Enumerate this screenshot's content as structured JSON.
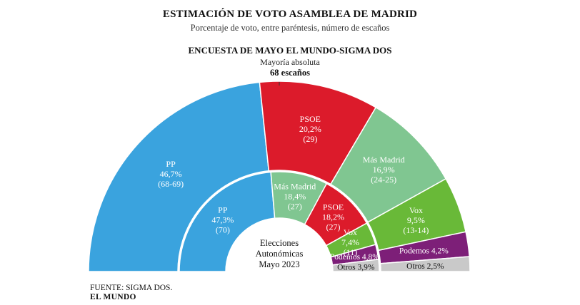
{
  "header": {
    "title": "ESTIMACIÓN DE VOTO ASAMBLEA DE MADRID",
    "subtitle": "Porcentaje de voto, entre paréntesis, número de escaños",
    "survey": "ENCUESTA DE MAYO EL MUNDO-SIGMA DOS",
    "majority_label": "Mayoría absoluta",
    "majority_value": "68 escaños"
  },
  "center_label": [
    "Elecciones",
    "Autonómicas",
    "Mayo 2023"
  ],
  "footer": {
    "source": "FUENTE: SIGMA DOS.",
    "brand": "EL MUNDO"
  },
  "chart_data": [
    {
      "type": "pie",
      "subtype": "semicircle-donut",
      "ring": "outer",
      "series": "Encuesta de mayo El Mundo-Sigma Dos",
      "slices": [
        {
          "party": "PP",
          "value": 46.7,
          "label": "46,7%",
          "seats": "(68-69)",
          "color": "#3aa3de"
        },
        {
          "party": "PSOE",
          "value": 20.2,
          "label": "20,2%",
          "seats": "(29)",
          "color": "#dc1b2b"
        },
        {
          "party": "Más Madrid",
          "value": 16.9,
          "label": "16,9%",
          "seats": "(24-25)",
          "color": "#80c691"
        },
        {
          "party": "Vox",
          "value": 9.5,
          "label": "9,5%",
          "seats": "(13-14)",
          "color": "#69b938"
        },
        {
          "party": "Podemos",
          "value": 4.2,
          "label": "4,2%",
          "seats": "",
          "color": "#7d1f78"
        },
        {
          "party": "Otros",
          "value": 2.5,
          "label": "2,5%",
          "seats": "",
          "color": "#c9c9c9"
        }
      ]
    },
    {
      "type": "pie",
      "subtype": "semicircle-donut",
      "ring": "inner",
      "series": "Elecciones Autonómicas Mayo 2023",
      "slices": [
        {
          "party": "PP",
          "value": 47.3,
          "label": "47,3%",
          "seats": "(70)",
          "color": "#3aa3de"
        },
        {
          "party": "Más Madrid",
          "value": 18.4,
          "label": "18,4%",
          "seats": "(27)",
          "color": "#80c691"
        },
        {
          "party": "PSOE",
          "value": 18.2,
          "label": "18,2%",
          "seats": "(27)",
          "color": "#dc1b2b"
        },
        {
          "party": "Vox",
          "value": 7.4,
          "label": "7,4%",
          "seats": "(11)",
          "color": "#69b938"
        },
        {
          "party": "Podemos",
          "value": 4.8,
          "label": "4,8%",
          "seats": "",
          "color": "#7d1f78"
        },
        {
          "party": "Otros",
          "value": 3.9,
          "label": "3,9%",
          "seats": "",
          "color": "#c9c9c9"
        }
      ]
    }
  ]
}
